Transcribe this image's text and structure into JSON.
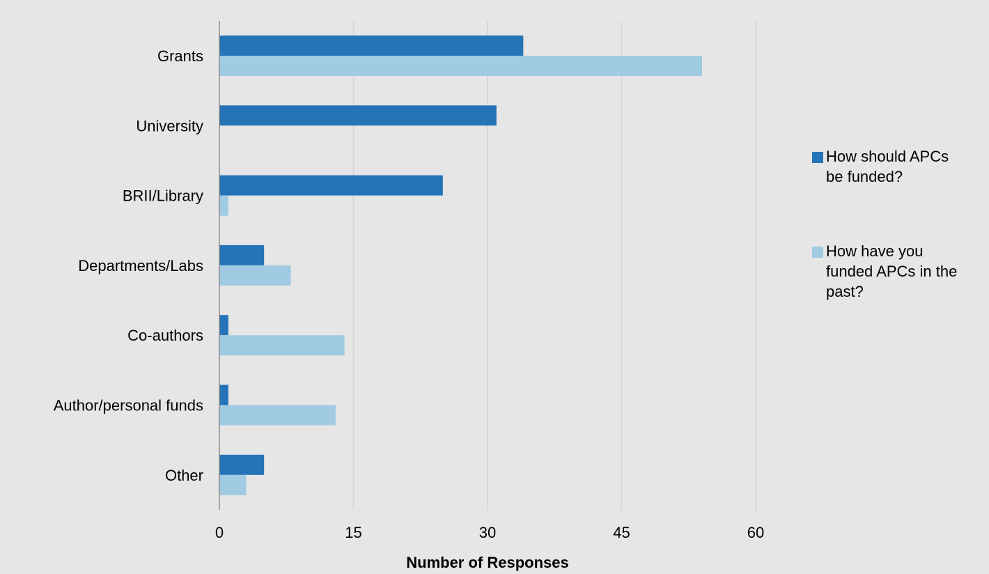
{
  "colors": {
    "background": "#e7e6e6",
    "series_dark": "#2574b8",
    "series_light": "#a0cbe2",
    "gridline": "#d4d4d4",
    "axis": "#8c8c8c"
  },
  "chart_data": {
    "type": "bar",
    "orientation": "horizontal",
    "title": "",
    "xlabel": "Number of Responses",
    "ylabel": "",
    "xlim": [
      0,
      60
    ],
    "xticks": [
      0,
      15,
      30,
      45,
      60
    ],
    "grid": true,
    "legend_position": "right",
    "categories": [
      "Grants",
      "University",
      "BRII/Library",
      "Departments/Labs",
      "Co-authors",
      "Author/personal funds",
      "Other"
    ],
    "series": [
      {
        "name": "How should APCs be funded?",
        "legend_lines": [
          "How should APCs",
          "be funded?"
        ],
        "color": "#2574b8",
        "values": [
          34,
          31,
          25,
          5,
          1,
          1,
          5
        ]
      },
      {
        "name": "How have you funded APCs in the past?",
        "legend_lines": [
          "How have you",
          "funded APCs in the",
          "past?"
        ],
        "color": "#a0cbe2",
        "values": [
          54,
          0,
          1,
          8,
          14,
          13,
          3
        ]
      }
    ]
  }
}
